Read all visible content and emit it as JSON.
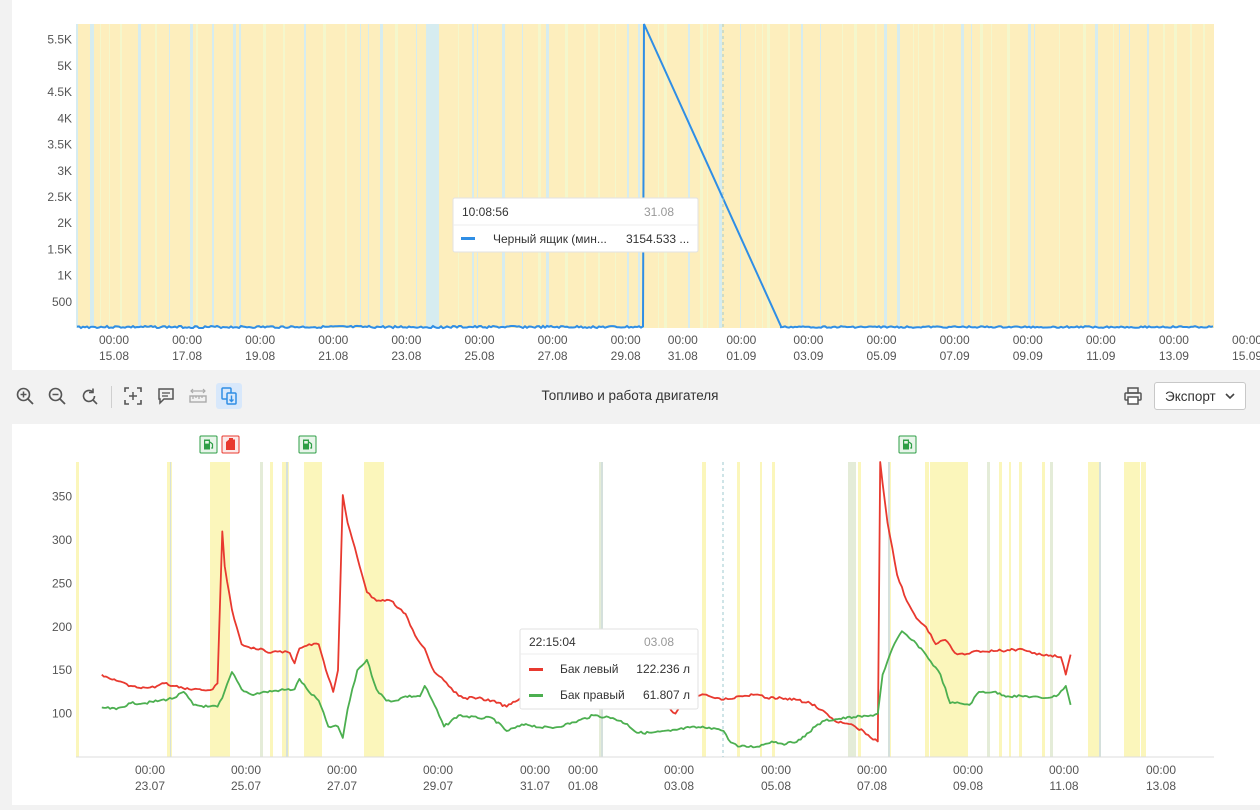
{
  "chart_data": [
    {
      "type": "line",
      "ylim": [
        0,
        5800
      ],
      "y_ticks": [
        "500",
        "1K",
        "1.5K",
        "2K",
        "2.5K",
        "3K",
        "3.5K",
        "4K",
        "4.5K",
        "5K",
        "5.5K"
      ],
      "y_tick_values": [
        500,
        1000,
        1500,
        2000,
        2500,
        3000,
        3500,
        4000,
        4500,
        5000,
        5500
      ],
      "x_ticks": [
        {
          "time": "00:00",
          "date": "15.08"
        },
        {
          "time": "00:00",
          "date": "17.08"
        },
        {
          "time": "00:00",
          "date": "19.08"
        },
        {
          "time": "00:00",
          "date": "21.08"
        },
        {
          "time": "00:00",
          "date": "23.08"
        },
        {
          "time": "00:00",
          "date": "25.08"
        },
        {
          "time": "00:00",
          "date": "27.08"
        },
        {
          "time": "00:00",
          "date": "29.08"
        },
        {
          "time": "00:00",
          "date": "31.08"
        },
        {
          "time": "00:00",
          "date": "01.09"
        },
        {
          "time": "00:00",
          "date": "03.09"
        },
        {
          "time": "00:00",
          "date": "05.09"
        },
        {
          "time": "00:00",
          "date": "07.09"
        },
        {
          "time": "00:00",
          "date": "09.09"
        },
        {
          "time": "00:00",
          "date": "11.09"
        },
        {
          "time": "00:00",
          "date": "13.09"
        },
        {
          "time": "00:00",
          "date": "15.09"
        }
      ],
      "series": [
        {
          "name": "Черный ящик (мин...",
          "color": "#2f8ee5",
          "points": [
            [
              "13.08",
              20
            ],
            [
              "29.08 12:00",
              20
            ],
            [
              "29.08 12:00",
              5800
            ],
            [
              "02.09 06:00",
              30
            ],
            [
              "15.09",
              30
            ]
          ]
        }
      ],
      "tooltip": {
        "time": "10:08:56",
        "date": "31.08",
        "label": "Черный ящик (мин...",
        "value": "3154.533 ..."
      }
    },
    {
      "type": "line",
      "ylim": [
        50,
        390
      ],
      "y_ticks": [
        "100",
        "150",
        "200",
        "250",
        "300",
        "350"
      ],
      "y_tick_values": [
        100,
        150,
        200,
        250,
        300,
        350
      ],
      "x_ticks": [
        {
          "time": "00:00",
          "date": "23.07"
        },
        {
          "time": "00:00",
          "date": "25.07"
        },
        {
          "time": "00:00",
          "date": "27.07"
        },
        {
          "time": "00:00",
          "date": "29.07"
        },
        {
          "time": "00:00",
          "date": "31.07"
        },
        {
          "time": "00:00",
          "date": "01.08"
        },
        {
          "time": "00:00",
          "date": "03.08"
        },
        {
          "time": "00:00",
          "date": "05.08"
        },
        {
          "time": "00:00",
          "date": "07.08"
        },
        {
          "time": "00:00",
          "date": "09.08"
        },
        {
          "time": "00:00",
          "date": "11.08"
        },
        {
          "time": "00:00",
          "date": "13.08"
        }
      ],
      "series": [
        {
          "name": "Бак левый",
          "color": "#e8392f",
          "points": [
            [
              0,
              145
            ],
            [
              0.3,
              138
            ],
            [
              0.6,
              132
            ],
            [
              0.9,
              130
            ],
            [
              1.1,
              130
            ],
            [
              1.3,
              135
            ],
            [
              1.6,
              130
            ],
            [
              1.9,
              128
            ],
            [
              2.2,
              127
            ],
            [
              2.3,
              128
            ],
            [
              2.4,
              135
            ],
            [
              2.5,
              310
            ],
            [
              2.55,
              270
            ],
            [
              2.7,
              220
            ],
            [
              2.9,
              180
            ],
            [
              3.1,
              175
            ],
            [
              3.3,
              175
            ],
            [
              3.5,
              170
            ],
            [
              3.7,
              172
            ],
            [
              3.9,
              170
            ],
            [
              4.0,
              158
            ],
            [
              4.1,
              175
            ],
            [
              4.3,
              180
            ],
            [
              4.5,
              180
            ],
            [
              4.7,
              142
            ],
            [
              4.8,
              125
            ],
            [
              4.9,
              150
            ],
            [
              5.0,
              352
            ],
            [
              5.1,
              320
            ],
            [
              5.3,
              280
            ],
            [
              5.5,
              240
            ],
            [
              5.7,
              230
            ],
            [
              6.0,
              230
            ],
            [
              6.3,
              215
            ],
            [
              6.5,
              190
            ],
            [
              6.7,
              175
            ],
            [
              6.8,
              160
            ],
            [
              6.9,
              148
            ],
            [
              7.1,
              138
            ],
            [
              7.3,
              125
            ],
            [
              7.5,
              118
            ],
            [
              7.8,
              118
            ],
            [
              8.1,
              115
            ],
            [
              8.4,
              108
            ],
            [
              8.8,
              122
            ],
            [
              9.1,
              118
            ],
            [
              9.4,
              115
            ],
            [
              9.8,
              110
            ],
            [
              10.2,
              112
            ],
            [
              10.6,
              118
            ],
            [
              11.1,
              118
            ],
            [
              11.6,
              115
            ],
            [
              11.9,
              100
            ],
            [
              12.1,
              118
            ],
            [
              12.5,
              122
            ],
            [
              12.9,
              116
            ],
            [
              13.3,
              120
            ],
            [
              13.6,
              122
            ],
            [
              13.8,
              118
            ],
            [
              14.1,
              118
            ],
            [
              14.4,
              116
            ],
            [
              14.7,
              112
            ],
            [
              15.0,
              102
            ],
            [
              15.2,
              92
            ],
            [
              15.5,
              88
            ],
            [
              15.8,
              80
            ],
            [
              16.0,
              70
            ],
            [
              16.1,
              68
            ],
            [
              16.15,
              390
            ],
            [
              16.3,
              320
            ],
            [
              16.5,
              260
            ],
            [
              16.7,
              230
            ],
            [
              16.9,
              210
            ],
            [
              17.1,
              200
            ],
            [
              17.3,
              180
            ],
            [
              17.5,
              185
            ],
            [
              17.7,
              170
            ],
            [
              17.9,
              168
            ],
            [
              18.1,
              172
            ],
            [
              18.5,
              172
            ],
            [
              19.0,
              174
            ],
            [
              19.2,
              172
            ],
            [
              19.4,
              168
            ],
            [
              19.6,
              168
            ],
            [
              19.9,
              165
            ],
            [
              20.0,
              145
            ],
            [
              20.1,
              168
            ]
          ]
        },
        {
          "name": "Бак правый",
          "color": "#4caf50",
          "points": [
            [
              0,
              107
            ],
            [
              0.3,
              105
            ],
            [
              0.6,
              112
            ],
            [
              0.9,
              112
            ],
            [
              1.2,
              115
            ],
            [
              1.5,
              118
            ],
            [
              1.7,
              125
            ],
            [
              1.9,
              110
            ],
            [
              2.2,
              108
            ],
            [
              2.4,
              108
            ],
            [
              2.5,
              118
            ],
            [
              2.7,
              148
            ],
            [
              2.9,
              128
            ],
            [
              3.1,
              122
            ],
            [
              3.4,
              125
            ],
            [
              3.7,
              127
            ],
            [
              4.0,
              128
            ],
            [
              4.1,
              140
            ],
            [
              4.3,
              125
            ],
            [
              4.5,
              115
            ],
            [
              4.7,
              85
            ],
            [
              4.9,
              85
            ],
            [
              5.0,
              72
            ],
            [
              5.1,
              105
            ],
            [
              5.3,
              150
            ],
            [
              5.5,
              162
            ],
            [
              5.7,
              128
            ],
            [
              5.9,
              115
            ],
            [
              6.1,
              115
            ],
            [
              6.3,
              120
            ],
            [
              6.6,
              120
            ],
            [
              6.7,
              132
            ],
            [
              6.9,
              110
            ],
            [
              7.1,
              85
            ],
            [
              7.4,
              98
            ],
            [
              7.8,
              95
            ],
            [
              8.1,
              95
            ],
            [
              8.4,
              80
            ],
            [
              8.8,
              88
            ],
            [
              9.1,
              84
            ],
            [
              9.4,
              84
            ],
            [
              9.8,
              90
            ],
            [
              10.2,
              98
            ],
            [
              10.6,
              95
            ],
            [
              10.9,
              88
            ],
            [
              11.1,
              78
            ],
            [
              11.4,
              78
            ],
            [
              11.8,
              80
            ],
            [
              12.2,
              84
            ],
            [
              12.6,
              84
            ],
            [
              12.8,
              82
            ],
            [
              12.9,
              80
            ],
            [
              13.0,
              70
            ],
            [
              13.2,
              62
            ],
            [
              13.6,
              62
            ],
            [
              13.9,
              68
            ],
            [
              14.2,
              65
            ],
            [
              14.5,
              70
            ],
            [
              14.8,
              85
            ],
            [
              15.0,
              92
            ],
            [
              15.3,
              94
            ],
            [
              15.6,
              96
            ],
            [
              15.9,
              97
            ],
            [
              16.1,
              100
            ],
            [
              16.2,
              145
            ],
            [
              16.4,
              175
            ],
            [
              16.6,
              195
            ],
            [
              16.8,
              185
            ],
            [
              17.0,
              175
            ],
            [
              17.2,
              160
            ],
            [
              17.4,
              145
            ],
            [
              17.6,
              112
            ],
            [
              17.8,
              112
            ],
            [
              18.0,
              110
            ],
            [
              18.2,
              125
            ],
            [
              18.5,
              125
            ],
            [
              18.8,
              120
            ],
            [
              19.2,
              120
            ],
            [
              19.5,
              118
            ],
            [
              19.8,
              120
            ],
            [
              20.0,
              132
            ],
            [
              20.1,
              110
            ]
          ]
        }
      ],
      "tooltip": {
        "time": "22:15:04",
        "date": "03.08",
        "rows": [
          {
            "label": "Бак левый",
            "value": "122.236 л"
          },
          {
            "label": "Бак правый",
            "value": "61.807 л"
          }
        ]
      }
    }
  ],
  "toolbar": {
    "title": "Топливо и работа двигателя",
    "export_label": "Экспорт",
    "colors": {
      "icon": "#555555",
      "active_bg": "#d8e8fb",
      "active_icon": "#2f8ee5"
    }
  },
  "markers": [
    {
      "icon": "fuel-pump-icon",
      "color": "#2e9e46"
    },
    {
      "icon": "fuel-drain-icon",
      "color": "#e8392f"
    },
    {
      "icon": "fuel-pump-icon",
      "color": "#2e9e46"
    },
    {
      "icon": "fuel-pump-icon",
      "color": "#2e9e46"
    }
  ]
}
